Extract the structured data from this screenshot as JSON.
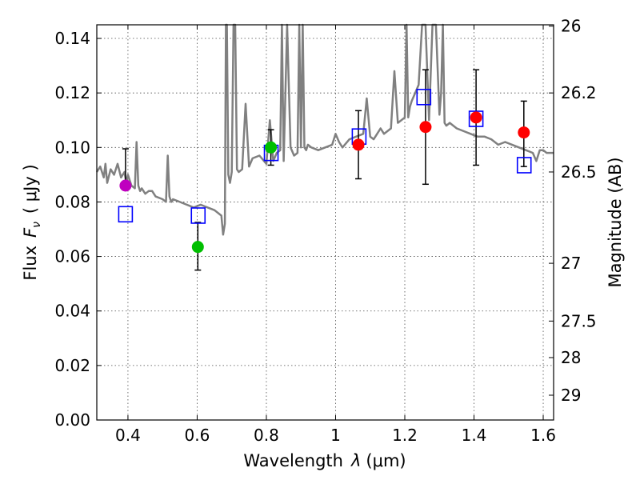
{
  "chart_data": {
    "type": "scatter",
    "xlabel_prefix": "Wavelength",
    "xlabel_symbol": "λ",
    "xlabel_unit": "(μm)",
    "ylabel_prefix": "Flux",
    "ylabel_symbol": "F",
    "ylabel_sub": "ν",
    "ylabel_unit": "( μJy )",
    "y2label": "Magnitude (AB)",
    "xlim": [
      0.31,
      1.63
    ],
    "ylim": [
      0.0,
      0.145
    ],
    "grid": true,
    "x_ticks": [
      0.4,
      0.6,
      0.8,
      1.0,
      1.2,
      1.4,
      1.6
    ],
    "x_tick_labels": [
      "0.4",
      "0.6",
      "0.8",
      "1",
      "1.2",
      "1.4",
      "1.6"
    ],
    "y_ticks": [
      0.0,
      0.02,
      0.04,
      0.06,
      0.08,
      0.1,
      0.12,
      0.14
    ],
    "y_tick_labels": [
      "0.00",
      "0.02",
      "0.04",
      "0.06",
      "0.08",
      "0.10",
      "0.12",
      "0.14"
    ],
    "y2_ticks": [
      {
        "label": "26",
        "flux": 0.1445
      },
      {
        "label": "26.2",
        "flux": 0.12
      },
      {
        "label": "26.5",
        "flux": 0.091
      },
      {
        "label": "27",
        "flux": 0.0575
      },
      {
        "label": "27.5",
        "flux": 0.0363
      },
      {
        "label": "28",
        "flux": 0.0229
      },
      {
        "label": "29",
        "flux": 0.0091
      }
    ],
    "model_spectrum": {
      "color": "#808080",
      "x": [
        0.31,
        0.32,
        0.33,
        0.335,
        0.34,
        0.35,
        0.36,
        0.37,
        0.38,
        0.39,
        0.395,
        0.4,
        0.41,
        0.42,
        0.425,
        0.43,
        0.435,
        0.44,
        0.45,
        0.46,
        0.47,
        0.48,
        0.5,
        0.51,
        0.515,
        0.52,
        0.525,
        0.53,
        0.55,
        0.57,
        0.59,
        0.61,
        0.63,
        0.65,
        0.67,
        0.675,
        0.68,
        0.683,
        0.686,
        0.69,
        0.695,
        0.7,
        0.705,
        0.71,
        0.715,
        0.72,
        0.73,
        0.74,
        0.75,
        0.76,
        0.78,
        0.8,
        0.81,
        0.82,
        0.83,
        0.84,
        0.845,
        0.85,
        0.86,
        0.87,
        0.88,
        0.89,
        0.895,
        0.9,
        0.905,
        0.91,
        0.915,
        0.92,
        0.93,
        0.95,
        0.97,
        0.99,
        1.0,
        1.01,
        1.02,
        1.04,
        1.06,
        1.08,
        1.09,
        1.1,
        1.11,
        1.12,
        1.13,
        1.14,
        1.15,
        1.16,
        1.17,
        1.18,
        1.19,
        1.2,
        1.205,
        1.21,
        1.215,
        1.22,
        1.23,
        1.24,
        1.25,
        1.26,
        1.27,
        1.28,
        1.29,
        1.3,
        1.305,
        1.31,
        1.315,
        1.32,
        1.33,
        1.35,
        1.37,
        1.39,
        1.41,
        1.43,
        1.45,
        1.47,
        1.49,
        1.51,
        1.53,
        1.55,
        1.57,
        1.58,
        1.59,
        1.6,
        1.61,
        1.63
      ],
      "y": [
        0.091,
        0.093,
        0.089,
        0.094,
        0.087,
        0.092,
        0.09,
        0.094,
        0.089,
        0.091,
        0.087,
        0.09,
        0.086,
        0.085,
        0.102,
        0.086,
        0.084,
        0.085,
        0.083,
        0.084,
        0.084,
        0.082,
        0.081,
        0.08,
        0.097,
        0.082,
        0.08,
        0.081,
        0.08,
        0.079,
        0.078,
        0.079,
        0.078,
        0.077,
        0.075,
        0.068,
        0.072,
        0.145,
        0.145,
        0.09,
        0.087,
        0.091,
        0.145,
        0.145,
        0.092,
        0.091,
        0.092,
        0.116,
        0.093,
        0.096,
        0.097,
        0.094,
        0.11,
        0.095,
        0.098,
        0.099,
        0.145,
        0.095,
        0.145,
        0.1,
        0.097,
        0.098,
        0.145,
        0.1,
        0.145,
        0.1,
        0.099,
        0.101,
        0.1,
        0.099,
        0.1,
        0.101,
        0.105,
        0.102,
        0.1,
        0.103,
        0.104,
        0.105,
        0.118,
        0.104,
        0.103,
        0.105,
        0.107,
        0.105,
        0.106,
        0.107,
        0.128,
        0.109,
        0.11,
        0.111,
        0.145,
        0.111,
        0.115,
        0.117,
        0.12,
        0.123,
        0.145,
        0.145,
        0.11,
        0.145,
        0.145,
        0.112,
        0.12,
        0.145,
        0.109,
        0.108,
        0.109,
        0.107,
        0.106,
        0.105,
        0.104,
        0.104,
        0.103,
        0.101,
        0.102,
        0.101,
        0.1,
        0.099,
        0.098,
        0.095,
        0.099,
        0.099,
        0.098,
        0.098
      ]
    },
    "observed_points": [
      {
        "x": 0.393,
        "y": 0.086,
        "err_lo": 0.086,
        "err_hi": 0.0995,
        "color": "#bf00bf"
      },
      {
        "x": 0.602,
        "y": 0.0635,
        "err_lo": 0.055,
        "err_hi": 0.0725,
        "color": "#00bf00"
      },
      {
        "x": 0.813,
        "y": 0.1,
        "err_lo": 0.0935,
        "err_hi": 0.1065,
        "color": "#00bf00"
      },
      {
        "x": 1.066,
        "y": 0.101,
        "err_lo": 0.0885,
        "err_hi": 0.1135,
        "color": "#ff0000"
      },
      {
        "x": 1.26,
        "y": 0.1075,
        "err_lo": 0.0865,
        "err_hi": 0.1285,
        "color": "#ff0000"
      },
      {
        "x": 1.406,
        "y": 0.111,
        "err_lo": 0.0935,
        "err_hi": 0.1285,
        "color": "#ff0000"
      },
      {
        "x": 1.544,
        "y": 0.1055,
        "err_lo": 0.093,
        "err_hi": 0.117,
        "color": "#ff0000"
      }
    ],
    "model_photometry": {
      "color": "#0000ff",
      "points": [
        {
          "x": 0.393,
          "y": 0.0755
        },
        {
          "x": 0.603,
          "y": 0.075
        },
        {
          "x": 0.814,
          "y": 0.098
        },
        {
          "x": 1.068,
          "y": 0.104
        },
        {
          "x": 1.255,
          "y": 0.1185
        },
        {
          "x": 1.406,
          "y": 0.1105
        },
        {
          "x": 1.545,
          "y": 0.0935
        }
      ]
    }
  }
}
